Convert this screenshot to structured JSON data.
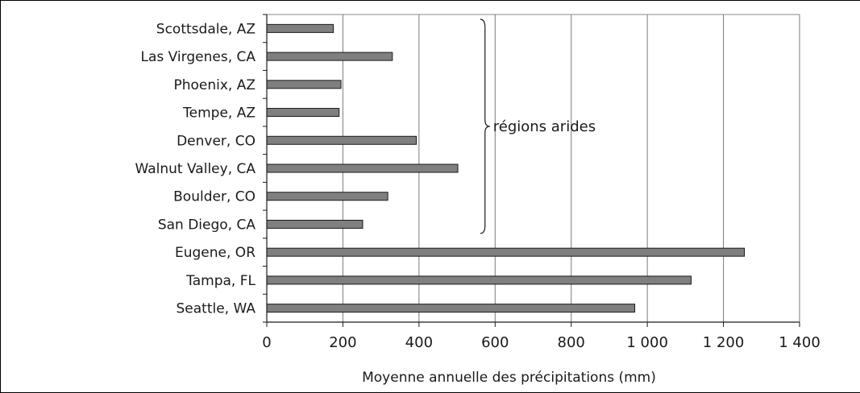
{
  "chart_data": {
    "type": "bar",
    "orientation": "horizontal",
    "categories": [
      "Scottsdale, AZ",
      "Las Virgenes, CA",
      "Phoenix, AZ",
      "Tempe, AZ",
      "Denver, CO",
      "Walnut Valley, CA",
      "Boulder, CO",
      "San Diego, CA",
      "Eugene, OR",
      "Tampa, FL",
      "Seattle, WA"
    ],
    "values": [
      175,
      330,
      195,
      190,
      393,
      502,
      318,
      252,
      1255,
      1115,
      967
    ],
    "xlabel": "Moyenne annuelle des précipitations (mm)",
    "ylabel": "",
    "xlim": [
      0,
      1400
    ],
    "xticks": [
      0,
      200,
      400,
      600,
      800,
      1000,
      1200,
      1400
    ],
    "xtick_labels": [
      "0",
      "200",
      "400",
      "600",
      "800",
      "1 000",
      "1 200",
      "1 400"
    ],
    "grid": "vertical",
    "bar_color": "#7f7f7f",
    "annotation": {
      "text": "régions arides",
      "spans": [
        "Scottsdale, AZ",
        "San Diego, CA"
      ],
      "brace_at_value": 565
    }
  }
}
